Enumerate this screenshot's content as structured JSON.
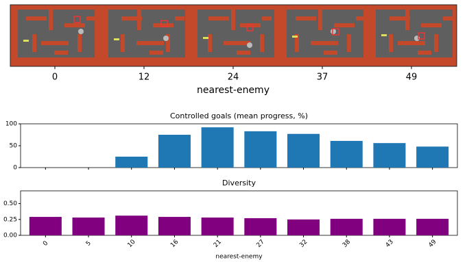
{
  "level_strip": {
    "labels": [
      "0",
      "12",
      "24",
      "37",
      "49"
    ],
    "xlabel": "nearest-enemy"
  },
  "chart_data": [
    {
      "type": "bar",
      "title": "Controlled goals (mean progress, %)",
      "color": "#1f77b4",
      "values": [
        0,
        0,
        25,
        75,
        92,
        83,
        77,
        61,
        56,
        48
      ],
      "ylim": [
        0,
        100
      ],
      "yticks": [
        0,
        50,
        100
      ]
    },
    {
      "type": "bar",
      "title": "Diversity",
      "color": "#800080",
      "categories": [
        "0",
        "5",
        "10",
        "16",
        "21",
        "27",
        "32",
        "38",
        "43",
        "49"
      ],
      "values": [
        0.29,
        0.28,
        0.31,
        0.29,
        0.28,
        0.27,
        0.25,
        0.26,
        0.26,
        0.26
      ],
      "xlabel": "nearest-enemy",
      "ylim": [
        0,
        0.7
      ],
      "yticks": [
        {
          "value": 0,
          "label": "0.00"
        },
        {
          "value": 0.25,
          "label": "0.25"
        },
        {
          "value": 0.5,
          "label": "0.50"
        }
      ]
    }
  ]
}
